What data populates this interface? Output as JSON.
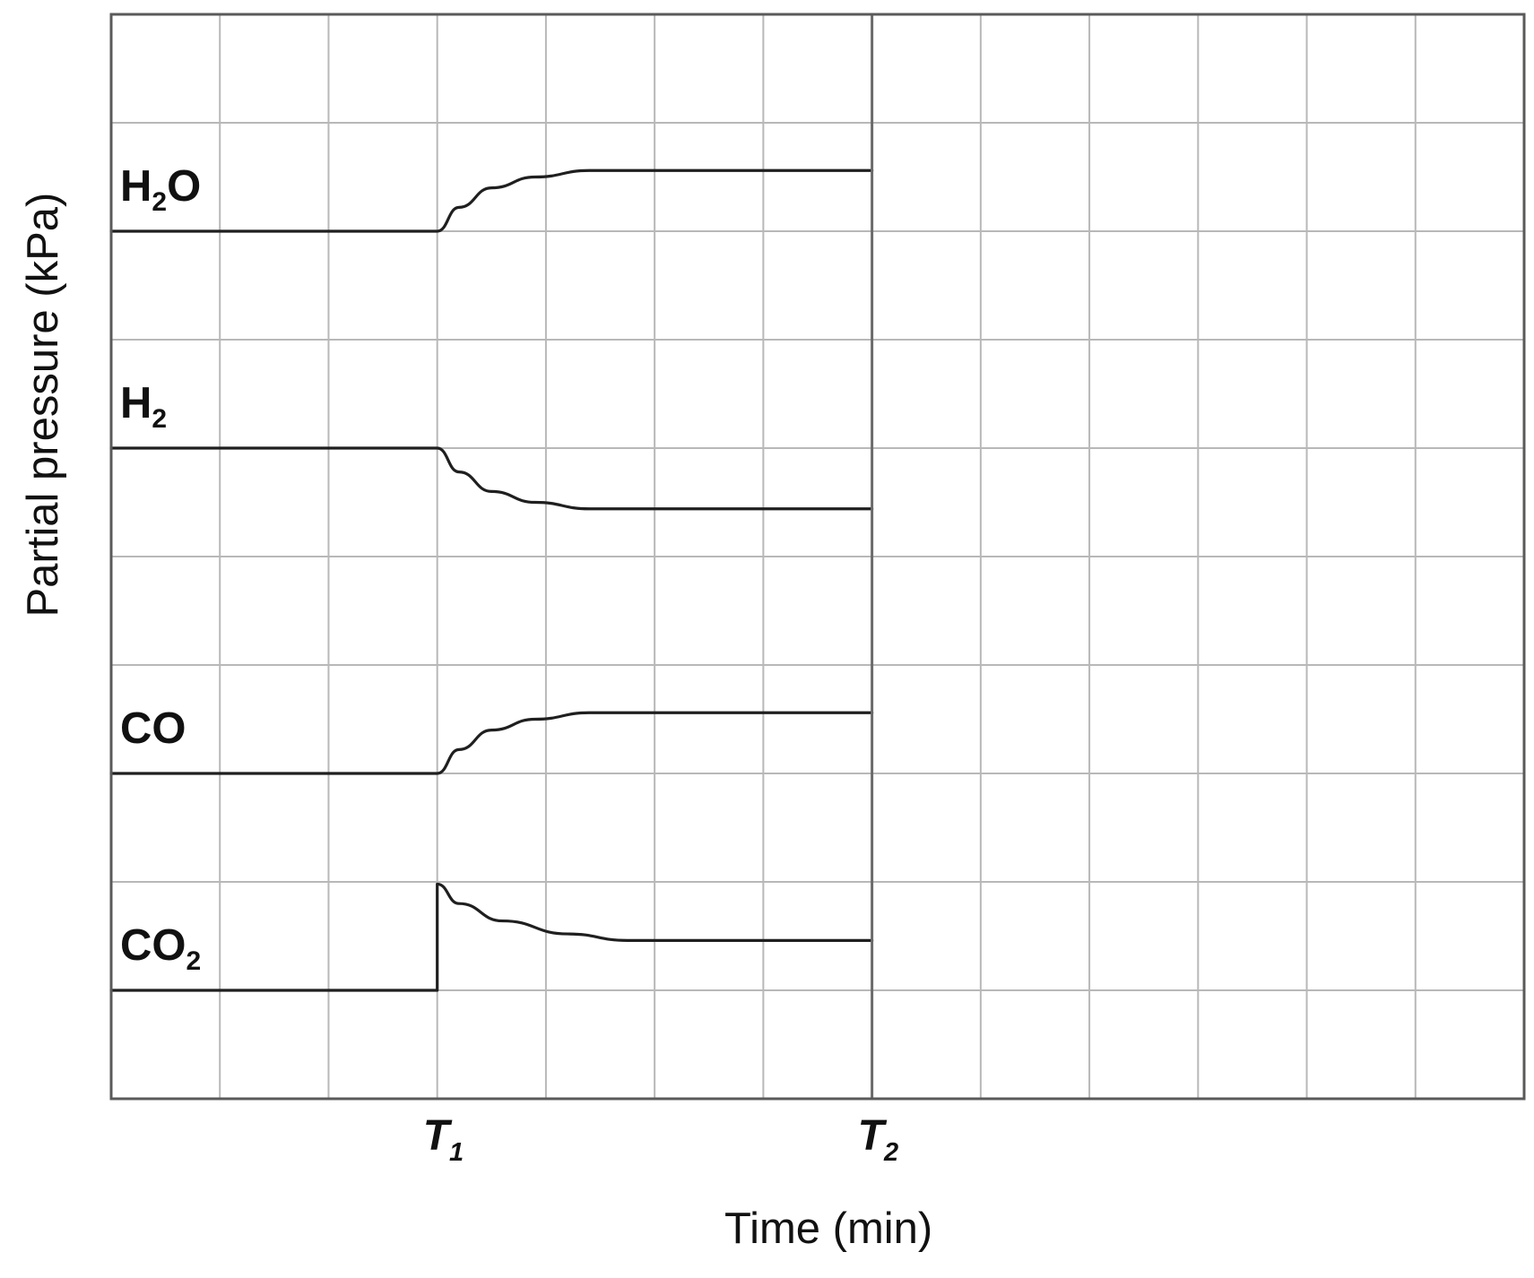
{
  "chart_data": {
    "type": "line",
    "title": "",
    "xlabel": "Time (min)",
    "ylabel": "Partial pressure (kPa)",
    "xlim": [
      0,
      13
    ],
    "ylim": [
      0,
      10
    ],
    "grid": true,
    "x_ticks": [
      {
        "x": 3,
        "label": "T",
        "sub": "1"
      },
      {
        "x": 7,
        "label": "T",
        "sub": "2"
      }
    ],
    "series": [
      {
        "name": "H₂O",
        "label_main": "H",
        "label_sub": "2",
        "label_tail": "O",
        "x": [
          0,
          3,
          3.2,
          3.5,
          3.9,
          4.4,
          7
        ],
        "y": [
          8.0,
          8.0,
          8.22,
          8.4,
          8.5,
          8.56,
          8.56
        ]
      },
      {
        "name": "H₂",
        "label_main": "H",
        "label_sub": "2",
        "label_tail": "",
        "x": [
          0,
          3,
          3.2,
          3.5,
          3.9,
          4.4,
          7
        ],
        "y": [
          6.0,
          6.0,
          5.78,
          5.6,
          5.5,
          5.44,
          5.44
        ]
      },
      {
        "name": "CO",
        "label_main": "CO",
        "label_sub": "",
        "label_tail": "",
        "x": [
          0,
          3,
          3.2,
          3.5,
          3.9,
          4.4,
          7
        ],
        "y": [
          3.0,
          3.0,
          3.22,
          3.4,
          3.5,
          3.56,
          3.56
        ]
      },
      {
        "name": "CO₂",
        "label_main": "CO",
        "label_sub": "2",
        "label_tail": "",
        "x": [
          0,
          3,
          3,
          3.2,
          3.6,
          4.2,
          4.75,
          7
        ],
        "y": [
          1.0,
          1.0,
          1.98,
          1.8,
          1.64,
          1.52,
          1.46,
          1.46
        ]
      }
    ]
  }
}
